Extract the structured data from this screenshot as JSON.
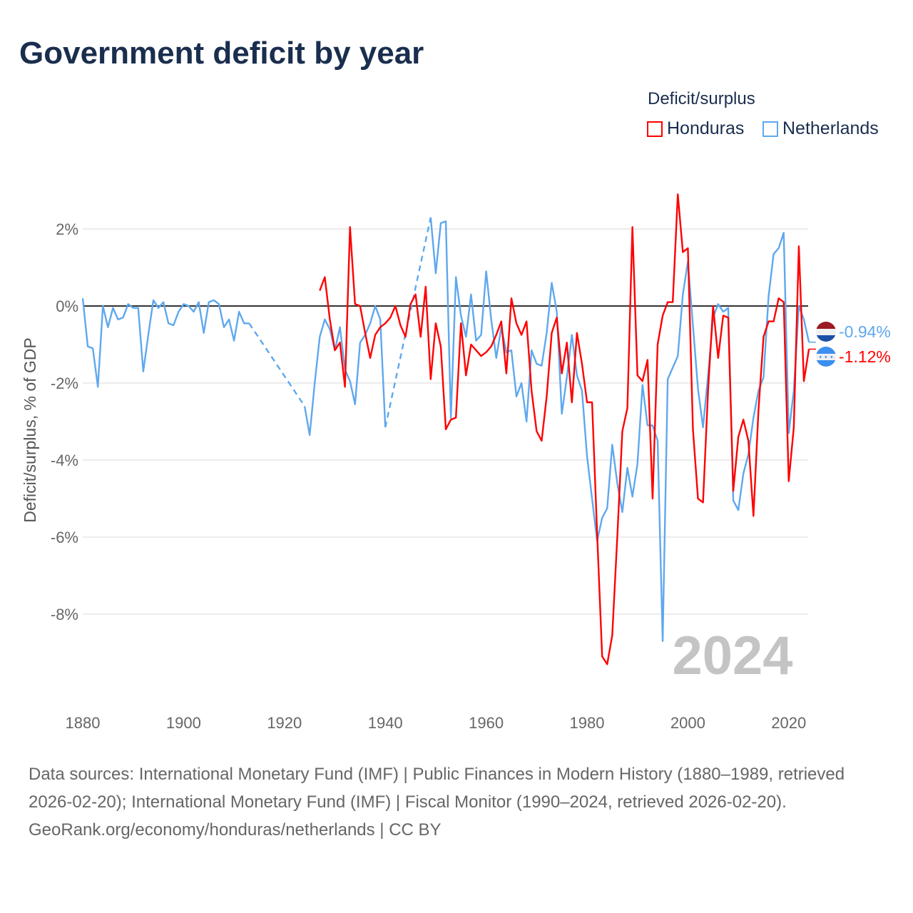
{
  "title": "Government deficit by year",
  "legend": {
    "title": "Deficit/surplus",
    "items": [
      {
        "name": "Honduras",
        "color": "#ff0000"
      },
      {
        "name": "Netherlands",
        "color": "#5ea8ee"
      }
    ]
  },
  "end_labels": {
    "netherlands": "-0.94%",
    "honduras": "-1.12%"
  },
  "year_watermark": "2024",
  "footer": {
    "sources": "Data sources: International Monetary Fund (IMF) | Public Finances in Modern History (1880–1989, retrieved 2026-02-20); International Monetary Fund (IMF) | Fiscal Monitor (1990–2024, retrieved 2026-02-20).",
    "credit": "GeoRank.org/economy/honduras/netherlands | CC BY"
  },
  "chart_data": {
    "type": "line",
    "title": "Government deficit by year",
    "xlabel": "",
    "ylabel": "Deficit/surplus, % of GDP",
    "xlim": [
      1880,
      2024
    ],
    "ylim": [
      -9.5,
      3
    ],
    "x_ticks": [
      1880,
      1900,
      1920,
      1940,
      1960,
      1980,
      2000,
      2020
    ],
    "x_tick_labels": [
      "1880",
      "1900",
      "1920",
      "1940",
      "1960",
      "1980",
      "2000",
      "2020"
    ],
    "y_ticks": [
      2,
      0,
      -2,
      -4,
      -6,
      -8
    ],
    "y_tick_labels": [
      "2%",
      "0%",
      "-2%",
      "-4%",
      "-6%",
      "-8%"
    ],
    "grid": true,
    "legend_position": "top-right",
    "series": [
      {
        "name": "Netherlands",
        "color": "#5ea8ee",
        "x": [
          1880,
          1881,
          1882,
          1883,
          1884,
          1885,
          1886,
          1887,
          1888,
          1889,
          1890,
          1891,
          1892,
          1893,
          1894,
          1895,
          1896,
          1897,
          1898,
          1899,
          1900,
          1901,
          1902,
          1903,
          1904,
          1905,
          1906,
          1907,
          1908,
          1909,
          1910,
          1911,
          1912,
          1913,
          1924,
          1925,
          1926,
          1927,
          1928,
          1929,
          1930,
          1931,
          1932,
          1933,
          1934,
          1935,
          1936,
          1937,
          1938,
          1939,
          1940,
          1949,
          1950,
          1951,
          1952,
          1953,
          1954,
          1955,
          1956,
          1957,
          1958,
          1959,
          1960,
          1961,
          1962,
          1963,
          1964,
          1965,
          1966,
          1967,
          1968,
          1969,
          1970,
          1971,
          1972,
          1973,
          1974,
          1975,
          1976,
          1977,
          1978,
          1979,
          1980,
          1981,
          1982,
          1983,
          1984,
          1985,
          1986,
          1987,
          1988,
          1989,
          1990,
          1991,
          1992,
          1993,
          1994,
          1995,
          1996,
          1997,
          1998,
          1999,
          2000,
          2001,
          2002,
          2003,
          2004,
          2005,
          2006,
          2007,
          2008,
          2009,
          2010,
          2011,
          2012,
          2013,
          2014,
          2015,
          2016,
          2017,
          2018,
          2019,
          2020,
          2021,
          2022,
          2023,
          2024
        ],
        "values": [
          0.2,
          -1.05,
          -1.1,
          -2.1,
          0.0,
          -0.55,
          -0.05,
          -0.35,
          -0.3,
          0.05,
          -0.05,
          -0.05,
          -1.7,
          -0.75,
          0.15,
          -0.05,
          0.1,
          -0.45,
          -0.5,
          -0.15,
          0.05,
          0.0,
          -0.15,
          0.1,
          -0.7,
          0.1,
          0.15,
          0.05,
          -0.55,
          -0.35,
          -0.9,
          -0.15,
          -0.45,
          -0.45,
          -2.6,
          -3.35,
          -2.0,
          -0.8,
          -0.35,
          -0.6,
          -1.15,
          -0.55,
          -1.65,
          -1.95,
          -2.55,
          -0.95,
          -0.75,
          -0.45,
          0.0,
          -0.35,
          -3.15,
          2.3,
          0.85,
          2.15,
          2.2,
          -2.9,
          0.75,
          -0.25,
          -0.8,
          0.3,
          -0.9,
          -0.75,
          0.9,
          -0.35,
          -1.35,
          -0.55,
          -1.2,
          -1.15,
          -2.35,
          -2.0,
          -3.0,
          -1.15,
          -1.5,
          -1.55,
          -0.7,
          0.6,
          -0.15,
          -2.8,
          -1.85,
          -0.75,
          -1.8,
          -2.2,
          -3.9,
          -5.0,
          -6.1,
          -5.5,
          -5.25,
          -3.6,
          -4.6,
          -5.35,
          -4.2,
          -4.95,
          -4.1,
          -2.05,
          -3.1,
          -3.1,
          -3.5,
          -8.7,
          -1.9,
          -1.6,
          -1.3,
          0.3,
          1.15,
          -0.5,
          -2.15,
          -3.15,
          -1.8,
          -0.3,
          0.05,
          -0.15,
          -0.05,
          -5.05,
          -5.3,
          -4.35,
          -3.85,
          -2.9,
          -2.2,
          -1.85,
          0.25,
          1.35,
          1.5,
          1.9,
          -3.3,
          -2.2,
          0.0,
          -0.35,
          -0.94
        ]
      },
      {
        "name": "Honduras",
        "color": "#ff0000",
        "x": [
          1927,
          1928,
          1929,
          1930,
          1931,
          1932,
          1933,
          1934,
          1935,
          1936,
          1937,
          1938,
          1939,
          1940,
          1941,
          1942,
          1943,
          1944,
          1945,
          1946,
          1947,
          1948,
          1949,
          1950,
          1951,
          1952,
          1953,
          1954,
          1955,
          1956,
          1957,
          1958,
          1959,
          1960,
          1961,
          1962,
          1963,
          1964,
          1965,
          1966,
          1967,
          1968,
          1969,
          1970,
          1971,
          1972,
          1973,
          1974,
          1975,
          1976,
          1977,
          1978,
          1979,
          1980,
          1981,
          1982,
          1983,
          1984,
          1985,
          1986,
          1987,
          1988,
          1989,
          1990,
          1991,
          1992,
          1993,
          1994,
          1995,
          1996,
          1997,
          1998,
          1999,
          2000,
          2001,
          2002,
          2003,
          2004,
          2005,
          2006,
          2007,
          2008,
          2009,
          2010,
          2011,
          2012,
          2013,
          2014,
          2015,
          2016,
          2017,
          2018,
          2019,
          2020,
          2021,
          2022,
          2023,
          2024
        ],
        "values": [
          0.4,
          0.75,
          -0.35,
          -1.15,
          -0.95,
          -2.1,
          2.05,
          0.05,
          0.0,
          -0.7,
          -1.35,
          -0.75,
          -0.55,
          -0.45,
          -0.3,
          0.0,
          -0.5,
          -0.8,
          0.05,
          0.3,
          -0.8,
          0.5,
          -1.9,
          -0.45,
          -1.05,
          -3.2,
          -2.95,
          -2.9,
          -0.45,
          -1.8,
          -1.0,
          -1.15,
          -1.3,
          -1.2,
          -1.05,
          -0.75,
          -0.4,
          -1.75,
          0.2,
          -0.45,
          -0.75,
          -0.4,
          -2.2,
          -3.25,
          -3.5,
          -2.35,
          -0.7,
          -0.3,
          -1.75,
          -0.95,
          -2.5,
          -0.7,
          -1.5,
          -2.5,
          -2.5,
          -5.9,
          -9.1,
          -9.3,
          -8.55,
          -6.0,
          -3.25,
          -2.65,
          2.05,
          -1.8,
          -1.95,
          -1.4,
          -5.0,
          -1.0,
          -0.25,
          0.1,
          0.1,
          2.9,
          1.4,
          1.5,
          -3.2,
          -5.0,
          -5.1,
          -2.2,
          0.0,
          -1.35,
          -0.25,
          -0.3,
          -4.8,
          -3.4,
          -2.95,
          -3.5,
          -5.45,
          -2.7,
          -0.8,
          -0.4,
          -0.4,
          0.2,
          0.1,
          -4.55,
          -3.15,
          1.55,
          -1.95,
          -1.12
        ]
      }
    ]
  }
}
